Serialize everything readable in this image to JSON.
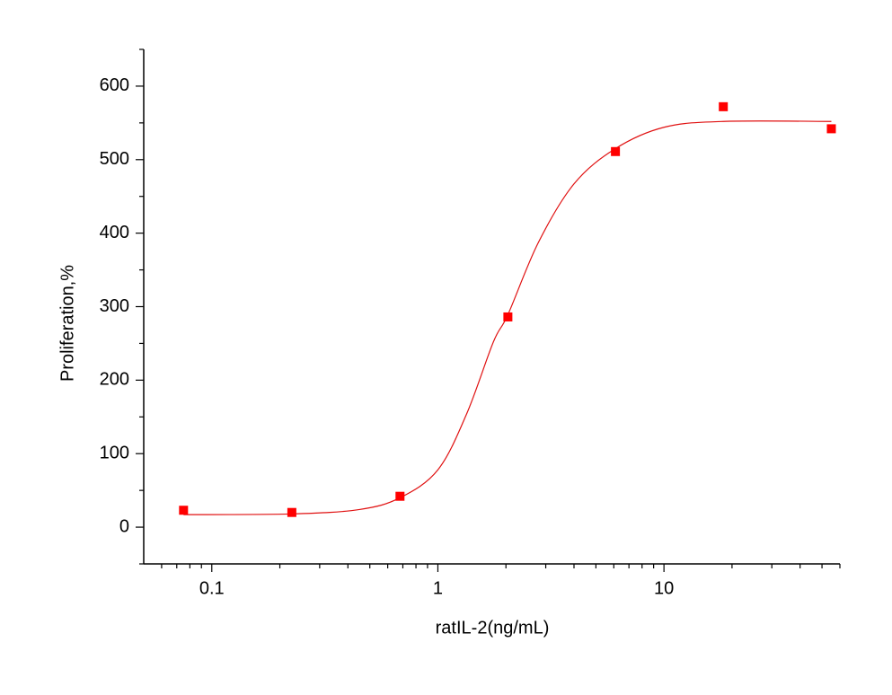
{
  "chart_data": {
    "type": "scatter",
    "x_label": "ratIL-2(ng/mL)",
    "y_label": "Proliferation,%",
    "xscale": "log",
    "xlim": [
      0.05,
      60
    ],
    "xticks": [
      0.1,
      1,
      10
    ],
    "xminorticks": [
      0.06,
      0.07,
      0.08,
      0.09,
      0.2,
      0.3,
      0.4,
      0.5,
      0.6,
      0.7,
      0.8,
      0.9,
      2,
      3,
      4,
      5,
      6,
      7,
      8,
      9,
      20,
      30,
      40,
      50,
      60
    ],
    "ylim": [
      -50,
      650
    ],
    "yticks": [
      0,
      100,
      200,
      300,
      400,
      500,
      600
    ],
    "yminorticks": [
      -50,
      50,
      150,
      250,
      350,
      450,
      550,
      650
    ],
    "series": [
      {
        "kind": "points",
        "color": "#ff0000",
        "x": [
          0.075,
          0.226,
          0.68,
          2.04,
          6.1,
          18.3,
          55
        ],
        "values": [
          23,
          20,
          42,
          286,
          511,
          572,
          542
        ]
      },
      {
        "kind": "fit",
        "color": "#e01010",
        "x": [
          0.075,
          0.226,
          0.45,
          0.68,
          1,
          1.34,
          1.76,
          2.04,
          2.78,
          4,
          6.1,
          10,
          18.3,
          55
        ],
        "values": [
          17,
          18,
          24,
          40,
          78,
          154,
          252,
          289,
          387,
          467,
          515,
          544,
          552,
          552
        ]
      }
    ]
  }
}
